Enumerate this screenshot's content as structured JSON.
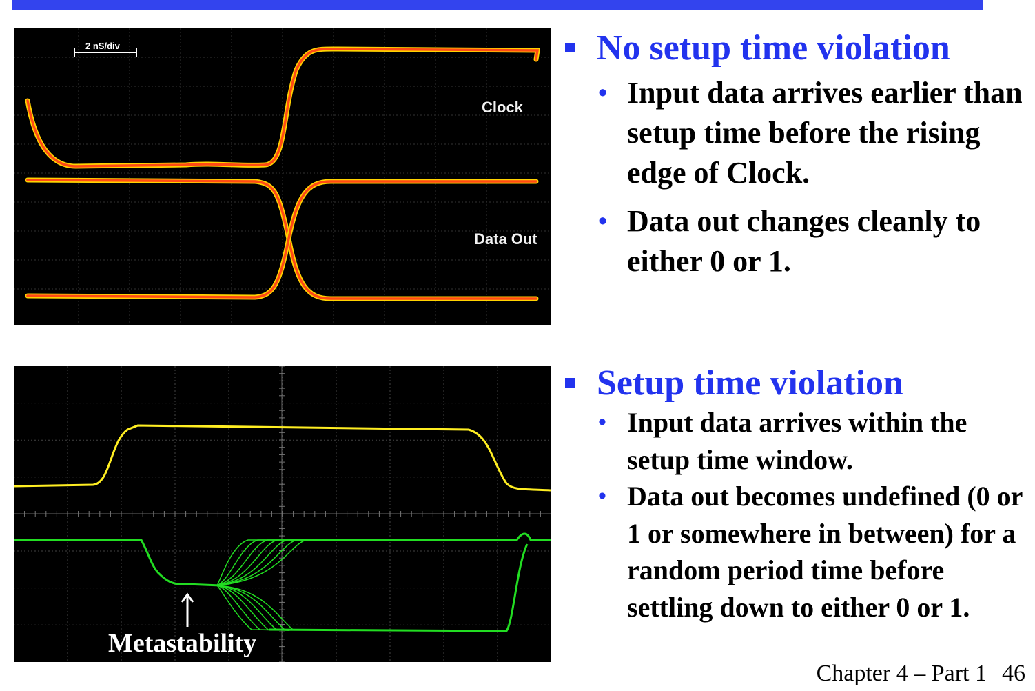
{
  "colors": {
    "accent": "#2233ee",
    "clock_trace": "#ff7a1a",
    "clock_outline": "#ffd200",
    "yellow_trace": "#ffee22",
    "green_trace": "#22dd22"
  },
  "scope1": {
    "time_div": "2 nS/div",
    "clock_label": "Clock",
    "data_label": "Data Out"
  },
  "scope2": {
    "metastability_label": "Metastability",
    "arrow_icon": "up-arrow-icon"
  },
  "section1": {
    "heading": "No setup time violation",
    "bullets": [
      "Input data arrives earlier than setup time before the rising edge of Clock.",
      "Data out changes cleanly to either 0 or 1."
    ]
  },
  "section2": {
    "heading": "Setup time violation",
    "bullets": [
      "Input data arrives within the setup time window.",
      "Data out becomes undefined (0 or 1 or somewhere in between) for a random period time before settling down to either 0 or 1."
    ]
  },
  "footer": {
    "chapter": "Chapter 4 – Part 1",
    "page": "46"
  }
}
